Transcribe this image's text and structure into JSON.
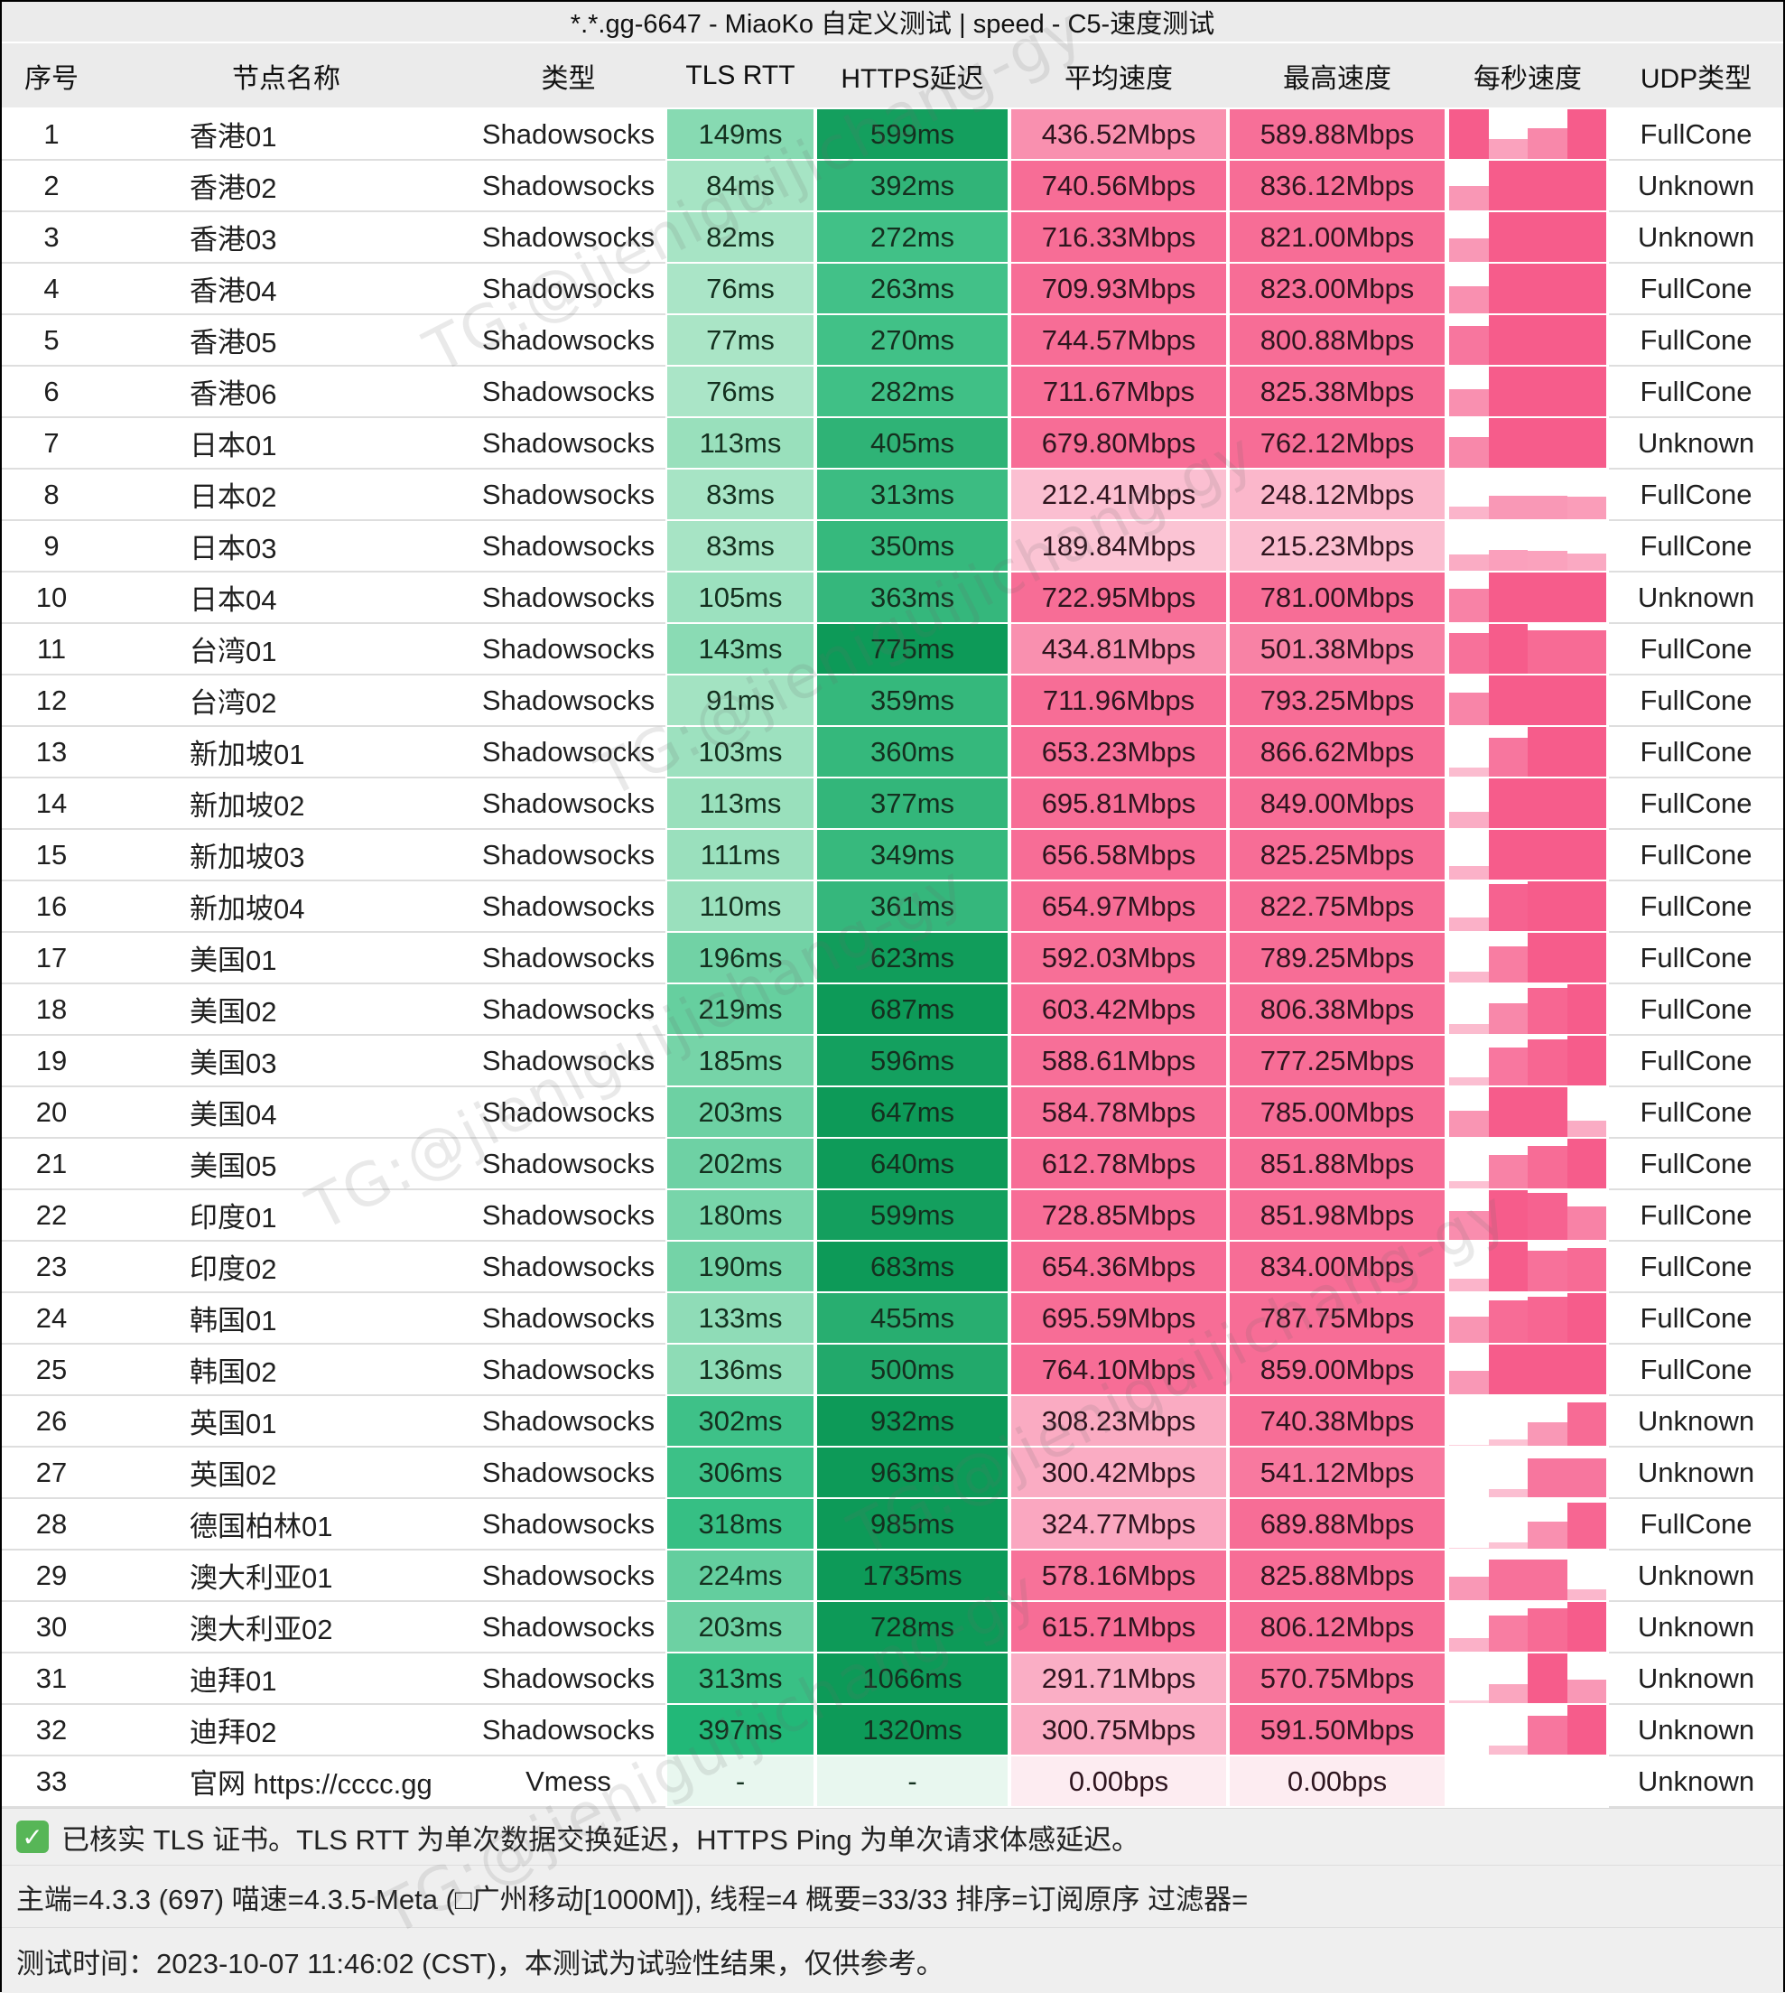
{
  "title": "*.*.gg-6647 - MiaoKo 自定义测试 | speed - C5-速度测试",
  "columns": [
    "序号",
    "节点名称",
    "类型",
    "TLS RTT",
    "HTTPS延迟",
    "平均速度",
    "最高速度",
    "每秒速度",
    "UDP类型"
  ],
  "rows": [
    {
      "no": "1",
      "name": "香港01",
      "type": "Shadowsocks",
      "tls_rtt": "149ms",
      "https_ping": "599ms",
      "avg_speed": "436.52Mbps",
      "max_speed": "589.88Mbps",
      "bars": [
        1,
        0.4,
        0.62,
        1
      ],
      "udp": "FullCone"
    },
    {
      "no": "2",
      "name": "香港02",
      "type": "Shadowsocks",
      "tls_rtt": "84ms",
      "https_ping": "392ms",
      "avg_speed": "740.56Mbps",
      "max_speed": "836.12Mbps",
      "bars": [
        0.5,
        1,
        1,
        1
      ],
      "udp": "Unknown"
    },
    {
      "no": "3",
      "name": "香港03",
      "type": "Shadowsocks",
      "tls_rtt": "82ms",
      "https_ping": "272ms",
      "avg_speed": "716.33Mbps",
      "max_speed": "821.00Mbps",
      "bars": [
        0.48,
        1,
        1,
        1
      ],
      "udp": "Unknown"
    },
    {
      "no": "4",
      "name": "香港04",
      "type": "Shadowsocks",
      "tls_rtt": "76ms",
      "https_ping": "263ms",
      "avg_speed": "709.93Mbps",
      "max_speed": "823.00Mbps",
      "bars": [
        0.55,
        1,
        1,
        1
      ],
      "udp": "FullCone"
    },
    {
      "no": "5",
      "name": "香港05",
      "type": "Shadowsocks",
      "tls_rtt": "77ms",
      "https_ping": "270ms",
      "avg_speed": "744.57Mbps",
      "max_speed": "800.88Mbps",
      "bars": [
        0.78,
        1,
        1,
        1
      ],
      "udp": "FullCone"
    },
    {
      "no": "6",
      "name": "香港06",
      "type": "Shadowsocks",
      "tls_rtt": "76ms",
      "https_ping": "282ms",
      "avg_speed": "711.67Mbps",
      "max_speed": "825.38Mbps",
      "bars": [
        0.55,
        1,
        1,
        1
      ],
      "udp": "FullCone"
    },
    {
      "no": "7",
      "name": "日本01",
      "type": "Shadowsocks",
      "tls_rtt": "113ms",
      "https_ping": "405ms",
      "avg_speed": "679.80Mbps",
      "max_speed": "762.12Mbps",
      "bars": [
        0.62,
        1,
        1,
        1
      ],
      "udp": "Unknown"
    },
    {
      "no": "8",
      "name": "日本02",
      "type": "Shadowsocks",
      "tls_rtt": "83ms",
      "https_ping": "313ms",
      "avg_speed": "212.41Mbps",
      "max_speed": "248.12Mbps",
      "bars": [
        0.25,
        0.48,
        0.48,
        0.45
      ],
      "udp": "FullCone"
    },
    {
      "no": "9",
      "name": "日本03",
      "type": "Shadowsocks",
      "tls_rtt": "83ms",
      "https_ping": "350ms",
      "avg_speed": "189.84Mbps",
      "max_speed": "215.23Mbps",
      "bars": [
        0.32,
        0.42,
        0.4,
        0.35
      ],
      "udp": "FullCone"
    },
    {
      "no": "10",
      "name": "日本04",
      "type": "Shadowsocks",
      "tls_rtt": "105ms",
      "https_ping": "363ms",
      "avg_speed": "722.95Mbps",
      "max_speed": "781.00Mbps",
      "bars": [
        0.68,
        1,
        1,
        1
      ],
      "udp": "Unknown"
    },
    {
      "no": "11",
      "name": "台湾01",
      "type": "Shadowsocks",
      "tls_rtt": "143ms",
      "https_ping": "775ms",
      "avg_speed": "434.81Mbps",
      "max_speed": "501.38Mbps",
      "bars": [
        0.82,
        1,
        0.88,
        0.88
      ],
      "udp": "FullCone"
    },
    {
      "no": "12",
      "name": "台湾02",
      "type": "Shadowsocks",
      "tls_rtt": "91ms",
      "https_ping": "359ms",
      "avg_speed": "711.96Mbps",
      "max_speed": "793.25Mbps",
      "bars": [
        0.65,
        1,
        1,
        1
      ],
      "udp": "FullCone"
    },
    {
      "no": "13",
      "name": "新加坡01",
      "type": "Shadowsocks",
      "tls_rtt": "103ms",
      "https_ping": "360ms",
      "avg_speed": "653.23Mbps",
      "max_speed": "866.62Mbps",
      "bars": [
        0.18,
        0.78,
        1,
        1
      ],
      "udp": "FullCone"
    },
    {
      "no": "14",
      "name": "新加坡02",
      "type": "Shadowsocks",
      "tls_rtt": "113ms",
      "https_ping": "377ms",
      "avg_speed": "695.81Mbps",
      "max_speed": "849.00Mbps",
      "bars": [
        0.32,
        1,
        1,
        1
      ],
      "udp": "FullCone"
    },
    {
      "no": "15",
      "name": "新加坡03",
      "type": "Shadowsocks",
      "tls_rtt": "111ms",
      "https_ping": "349ms",
      "avg_speed": "656.58Mbps",
      "max_speed": "825.25Mbps",
      "bars": [
        0.28,
        1,
        1,
        1
      ],
      "udp": "FullCone"
    },
    {
      "no": "16",
      "name": "新加坡04",
      "type": "Shadowsocks",
      "tls_rtt": "110ms",
      "https_ping": "361ms",
      "avg_speed": "654.97Mbps",
      "max_speed": "822.75Mbps",
      "bars": [
        0.28,
        0.95,
        1,
        1
      ],
      "udp": "FullCone"
    },
    {
      "no": "17",
      "name": "美国01",
      "type": "Shadowsocks",
      "tls_rtt": "196ms",
      "https_ping": "623ms",
      "avg_speed": "592.03Mbps",
      "max_speed": "789.25Mbps",
      "bars": [
        0.22,
        0.72,
        1,
        1
      ],
      "udp": "FullCone"
    },
    {
      "no": "18",
      "name": "美国02",
      "type": "Shadowsocks",
      "tls_rtt": "219ms",
      "https_ping": "687ms",
      "avg_speed": "603.42Mbps",
      "max_speed": "806.38Mbps",
      "bars": [
        0.2,
        0.62,
        0.92,
        1
      ],
      "udp": "FullCone"
    },
    {
      "no": "19",
      "name": "美国03",
      "type": "Shadowsocks",
      "tls_rtt": "185ms",
      "https_ping": "596ms",
      "avg_speed": "588.61Mbps",
      "max_speed": "777.25Mbps",
      "bars": [
        0.16,
        0.76,
        0.92,
        1
      ],
      "udp": "FullCone"
    },
    {
      "no": "20",
      "name": "美国04",
      "type": "Shadowsocks",
      "tls_rtt": "203ms",
      "https_ping": "647ms",
      "avg_speed": "584.78Mbps",
      "max_speed": "785.00Mbps",
      "bars": [
        0.52,
        1,
        1,
        0.32
      ],
      "udp": "FullCone"
    },
    {
      "no": "21",
      "name": "美国05",
      "type": "Shadowsocks",
      "tls_rtt": "202ms",
      "https_ping": "640ms",
      "avg_speed": "612.78Mbps",
      "max_speed": "851.88Mbps",
      "bars": [
        0.15,
        0.68,
        0.86,
        1
      ],
      "udp": "FullCone"
    },
    {
      "no": "22",
      "name": "印度01",
      "type": "Shadowsocks",
      "tls_rtt": "180ms",
      "https_ping": "599ms",
      "avg_speed": "728.85Mbps",
      "max_speed": "851.98Mbps",
      "bars": [
        0.58,
        1,
        0.95,
        0.68
      ],
      "udp": "FullCone"
    },
    {
      "no": "23",
      "name": "印度02",
      "type": "Shadowsocks",
      "tls_rtt": "190ms",
      "https_ping": "683ms",
      "avg_speed": "654.36Mbps",
      "max_speed": "834.00Mbps",
      "bars": [
        0.25,
        1,
        0.82,
        0.88
      ],
      "udp": "FullCone"
    },
    {
      "no": "24",
      "name": "韩国01",
      "type": "Shadowsocks",
      "tls_rtt": "133ms",
      "https_ping": "455ms",
      "avg_speed": "695.59Mbps",
      "max_speed": "787.75Mbps",
      "bars": [
        0.52,
        0.86,
        0.92,
        1
      ],
      "udp": "FullCone"
    },
    {
      "no": "25",
      "name": "韩国02",
      "type": "Shadowsocks",
      "tls_rtt": "136ms",
      "https_ping": "500ms",
      "avg_speed": "764.10Mbps",
      "max_speed": "859.00Mbps",
      "bars": [
        0.48,
        1,
        1,
        1
      ],
      "udp": "FullCone"
    },
    {
      "no": "26",
      "name": "英国01",
      "type": "Shadowsocks",
      "tls_rtt": "302ms",
      "https_ping": "932ms",
      "avg_speed": "308.23Mbps",
      "max_speed": "740.38Mbps",
      "bars": [
        0.02,
        0.12,
        0.48,
        0.88
      ],
      "udp": "Unknown"
    },
    {
      "no": "27",
      "name": "英国02",
      "type": "Shadowsocks",
      "tls_rtt": "306ms",
      "https_ping": "963ms",
      "avg_speed": "300.42Mbps",
      "max_speed": "541.12Mbps",
      "bars": [
        0,
        0.16,
        0.78,
        0.78
      ],
      "udp": "Unknown"
    },
    {
      "no": "28",
      "name": "德国柏林01",
      "type": "Shadowsocks",
      "tls_rtt": "318ms",
      "https_ping": "985ms",
      "avg_speed": "324.77Mbps",
      "max_speed": "689.88Mbps",
      "bars": [
        0.02,
        0.12,
        0.55,
        0.92
      ],
      "udp": "FullCone"
    },
    {
      "no": "29",
      "name": "澳大利亚01",
      "type": "Shadowsocks",
      "tls_rtt": "224ms",
      "https_ping": "1735ms",
      "avg_speed": "578.16Mbps",
      "max_speed": "825.88Mbps",
      "bars": [
        0.48,
        0.82,
        0.82,
        0.22
      ],
      "udp": "Unknown"
    },
    {
      "no": "30",
      "name": "澳大利亚02",
      "type": "Shadowsocks",
      "tls_rtt": "203ms",
      "https_ping": "728ms",
      "avg_speed": "615.71Mbps",
      "max_speed": "806.12Mbps",
      "bars": [
        0.28,
        0.72,
        0.88,
        1
      ],
      "udp": "Unknown"
    },
    {
      "no": "31",
      "name": "迪拜01",
      "type": "Shadowsocks",
      "tls_rtt": "313ms",
      "https_ping": "1066ms",
      "avg_speed": "291.71Mbps",
      "max_speed": "570.75Mbps",
      "bars": [
        0.06,
        0.38,
        1,
        0.48
      ],
      "udp": "Unknown"
    },
    {
      "no": "32",
      "name": "迪拜02",
      "type": "Shadowsocks",
      "tls_rtt": "397ms",
      "https_ping": "1320ms",
      "avg_speed": "300.75Mbps",
      "max_speed": "591.50Mbps",
      "bars": [
        0,
        0.18,
        0.78,
        1
      ],
      "udp": "Unknown"
    },
    {
      "no": "33",
      "name": "官网 https://cccc.gg",
      "type": "Vmess",
      "tls_rtt": "-",
      "https_ping": "-",
      "avg_speed": "0.00bps",
      "max_speed": "0.00bps",
      "bars": [
        0,
        0,
        0,
        0
      ],
      "udp": "Unknown"
    }
  ],
  "footer": {
    "verified_icon": "✓",
    "line1": "已核实 TLS 证书。TLS RTT 为单次数据交换延迟，HTTPS Ping 为单次请求体感延迟。",
    "line2": "主端=4.3.3 (697) 喵速=4.3.5-Meta (□广州移动[1000M]), 线程=4 概要=33/33 排序=订阅原序 过滤器=",
    "line3": "测试时间：2023-10-07 11:46:02 (CST)，本测试为试验性结果，仅供参考。"
  },
  "watermark": "TG:@jieniguijichang-gy",
  "colors": {
    "rtt_light": "#b2e8cb",
    "rtt_dark": "#22b878",
    "https_light": "#52cd96",
    "https_dark": "#0d9a58",
    "speed_light": "#fdecf1",
    "speed_dark": "#f76d96",
    "bar_rgb": "246,92,139",
    "empty_green": "#e8f7ef",
    "header_bg": "#ebebeb"
  }
}
